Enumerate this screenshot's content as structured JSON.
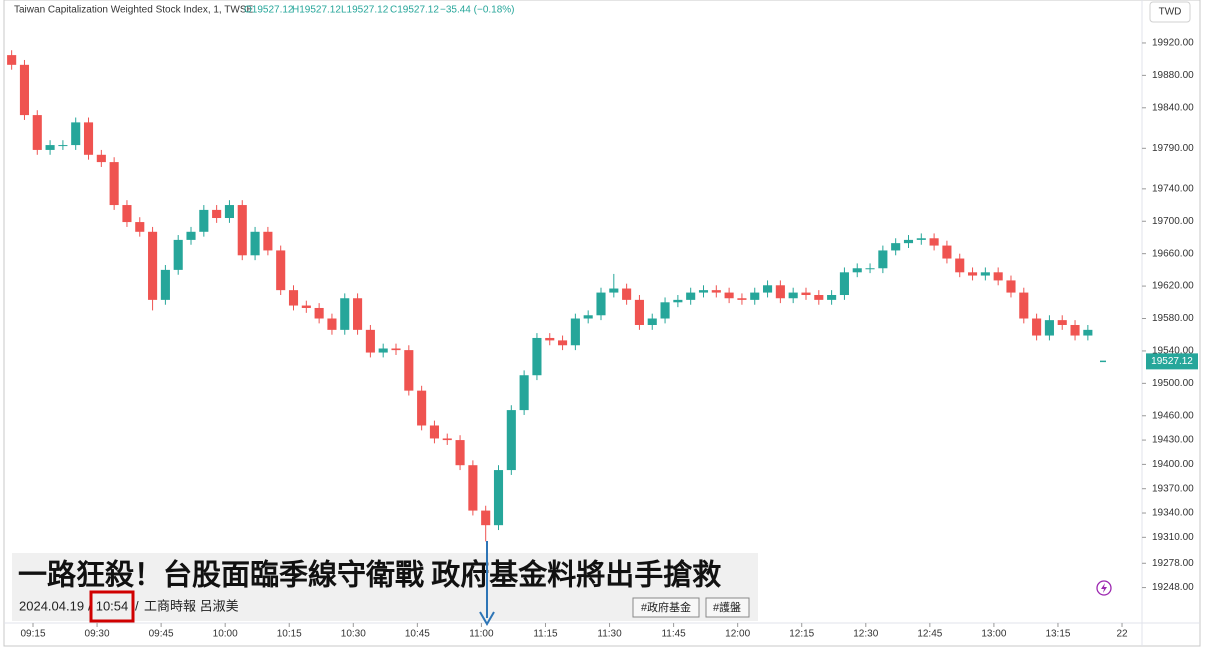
{
  "chart_data": {
    "type": "candlestick",
    "title": "Taiwan Capitalization Weighted Stock Index, 1, TWSE",
    "ohlc_text": [
      "O19527.12",
      "H19527.12",
      "L19527.12",
      "C19527.12"
    ],
    "change_text": "−35.44 (−0.18%)",
    "currency": "TWD",
    "last_price": 19527.12,
    "up_color": "#26a69a",
    "down_color": "#ef5350",
    "ylim": [
      19208,
      19973
    ],
    "yticks": [
      {
        "value": 19920,
        "label": "19920.00"
      },
      {
        "value": 19880,
        "label": "19880.00"
      },
      {
        "value": 19840,
        "label": "19840.00"
      },
      {
        "value": 19790,
        "label": "19790.00"
      },
      {
        "value": 19740,
        "label": "19740.00"
      },
      {
        "value": 19700,
        "label": "19700.00"
      },
      {
        "value": 19660,
        "label": "19660.00"
      },
      {
        "value": 19620,
        "label": "19620.00"
      },
      {
        "value": 19580,
        "label": "19580.00"
      },
      {
        "value": 19540,
        "label": "19540.00"
      },
      {
        "value": 19500,
        "label": "19500.00"
      },
      {
        "value": 19460,
        "label": "19460.00"
      },
      {
        "value": 19430,
        "label": "19430.00"
      },
      {
        "value": 19400,
        "label": "19400.00"
      },
      {
        "value": 19370,
        "label": "19370.00"
      },
      {
        "value": 19340,
        "label": "19340.00"
      },
      {
        "value": 19310,
        "label": "19310.00"
      },
      {
        "value": 19278,
        "label": "19278.00"
      },
      {
        "value": 19248,
        "label": "19248.00"
      }
    ],
    "xticks": [
      "09:15",
      "09:30",
      "09:45",
      "10:00",
      "10:15",
      "10:30",
      "10:45",
      "11:00",
      "11:15",
      "11:30",
      "11:45",
      "12:00",
      "12:15",
      "12:30",
      "12:45",
      "13:00",
      "13:15",
      "22"
    ],
    "x": [
      "09:10",
      "09:13",
      "09:16",
      "09:19",
      "09:22",
      "09:25",
      "09:28",
      "09:31",
      "09:34",
      "09:37",
      "09:40",
      "09:43",
      "09:46",
      "09:49",
      "09:52",
      "09:55",
      "09:58",
      "10:01",
      "10:04",
      "10:07",
      "10:10",
      "10:13",
      "10:16",
      "10:19",
      "10:22",
      "10:25",
      "10:28",
      "10:31",
      "10:34",
      "10:37",
      "10:40",
      "10:43",
      "10:46",
      "10:49",
      "10:52",
      "10:55",
      "10:58",
      "11:01",
      "11:04",
      "11:07",
      "11:10",
      "11:13",
      "11:16",
      "11:19",
      "11:22",
      "11:25",
      "11:28",
      "11:31",
      "11:34",
      "11:37",
      "11:40",
      "11:43",
      "11:46",
      "11:49",
      "11:52",
      "11:55",
      "11:58",
      "12:01",
      "12:04",
      "12:07",
      "12:10",
      "12:13",
      "12:16",
      "12:19",
      "12:22",
      "12:25",
      "12:28",
      "12:31",
      "12:34",
      "12:37",
      "12:40",
      "12:43",
      "12:46",
      "12:49",
      "12:52",
      "12:55",
      "12:58",
      "13:01",
      "13:04",
      "13:07",
      "13:10",
      "13:13",
      "13:16",
      "13:19",
      "13:22"
    ],
    "open": [
      19905,
      19893,
      19831,
      19788,
      19794,
      19794,
      19822,
      19782,
      19773,
      19720,
      19699,
      19687,
      19603,
      19640,
      19677,
      19687,
      19714,
      19704,
      19720,
      19658,
      19687,
      19664,
      19615,
      19596,
      19593,
      19580,
      19566,
      19605,
      19566,
      19538,
      19543,
      19541,
      19491,
      19448,
      19432,
      19430,
      19399,
      19343,
      19325,
      19393,
      19467,
      19510,
      19556,
      19553,
      19547,
      19580,
      19584,
      19612,
      19617,
      19603,
      19572,
      19580,
      19600,
      19603,
      19612,
      19615,
      19612,
      19605,
      19603,
      19612,
      19621,
      19605,
      19612,
      19609,
      19603,
      19609,
      19637,
      19642,
      19642,
      19664,
      19673,
      19677,
      19679,
      19670,
      19654,
      19637,
      19633,
      19637,
      19627,
      19612,
      19580,
      19559,
      19578,
      19572,
      19559
    ],
    "high": [
      19911,
      19899,
      19837,
      19800,
      19800,
      19828,
      19828,
      19788,
      19779,
      19726,
      19705,
      19693,
      19646,
      19683,
      19693,
      19720,
      19720,
      19726,
      19726,
      19693,
      19693,
      19670,
      19621,
      19602,
      19599,
      19586,
      19611,
      19611,
      19572,
      19549,
      19549,
      19547,
      19497,
      19454,
      19438,
      19436,
      19405,
      19349,
      19399,
      19473,
      19516,
      19562,
      19562,
      19559,
      19586,
      19590,
      19618,
      19635,
      19623,
      19609,
      19586,
      19606,
      19609,
      19618,
      19621,
      19621,
      19618,
      19611,
      19618,
      19627,
      19627,
      19618,
      19618,
      19615,
      19615,
      19643,
      19648,
      19648,
      19670,
      19679,
      19683,
      19685,
      19685,
      19676,
      19660,
      19643,
      19643,
      19643,
      19633,
      19618,
      19586,
      19584,
      19584,
      19578,
      19572
    ],
    "low": [
      19887,
      19825,
      19782,
      19782,
      19788,
      19788,
      19776,
      19767,
      19714,
      19693,
      19681,
      19590,
      19597,
      19634,
      19671,
      19681,
      19698,
      19698,
      19652,
      19652,
      19658,
      19609,
      19590,
      19587,
      19574,
      19560,
      19560,
      19560,
      19532,
      19532,
      19535,
      19485,
      19442,
      19426,
      19424,
      19393,
      19337,
      19305,
      19319,
      19387,
      19461,
      19504,
      19547,
      19541,
      19541,
      19574,
      19578,
      19606,
      19597,
      19566,
      19566,
      19574,
      19594,
      19597,
      19606,
      19606,
      19599,
      19597,
      19597,
      19606,
      19599,
      19599,
      19603,
      19597,
      19597,
      19603,
      19631,
      19636,
      19636,
      19658,
      19667,
      19671,
      19664,
      19648,
      19631,
      19627,
      19627,
      19621,
      19606,
      19574,
      19553,
      19553,
      19566,
      19553,
      19553
    ],
    "close": [
      19893,
      19831,
      19788,
      19794,
      19794,
      19822,
      19782,
      19773,
      19720,
      19699,
      19687,
      19603,
      19640,
      19677,
      19687,
      19714,
      19704,
      19720,
      19658,
      19687,
      19664,
      19615,
      19596,
      19593,
      19580,
      19566,
      19605,
      19566,
      19538,
      19543,
      19541,
      19491,
      19448,
      19432,
      19430,
      19399,
      19343,
      19325,
      19393,
      19467,
      19510,
      19556,
      19553,
      19547,
      19580,
      19584,
      19612,
      19617,
      19603,
      19572,
      19580,
      19600,
      19603,
      19612,
      19615,
      19612,
      19605,
      19603,
      19612,
      19621,
      19605,
      19612,
      19609,
      19603,
      19609,
      19637,
      19642,
      19642,
      19664,
      19673,
      19677,
      19679,
      19670,
      19654,
      19637,
      19633,
      19637,
      19627,
      19612,
      19580,
      19559,
      19578,
      19572,
      19559,
      19566
    ]
  },
  "news": {
    "headline": "一路狂殺！台股面臨季線守衛戰 政府基金料將出手搶救",
    "date": "2024.04.19",
    "time": "10:54",
    "source": "工商時報 呂淑美",
    "tags": [
      "#政府基金",
      "#護盤"
    ]
  }
}
